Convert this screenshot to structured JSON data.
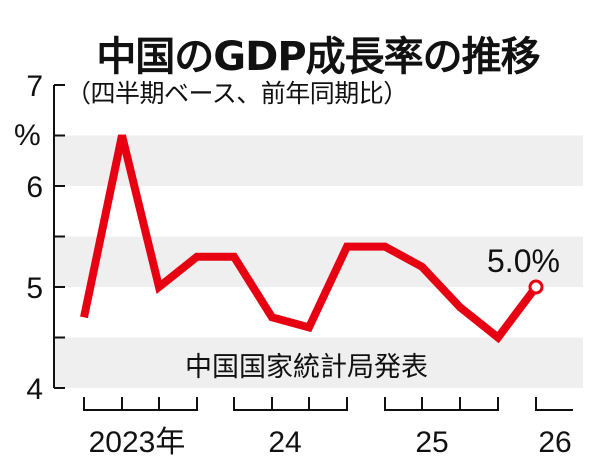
{
  "header": {
    "title": "中国のGDP成長率の推移",
    "subtitle": "（四半期ベース、前年同期比）"
  },
  "source_note": "中国国家統計局発表",
  "end_label": "5.0%",
  "y_unit": "%",
  "colors": {
    "line": "#e60012",
    "band": "#efefef",
    "axis": "#111111"
  },
  "chart_data": {
    "type": "line",
    "title": "中国のGDP成長率の推移",
    "subtitle": "（四半期ベース、前年同期比）",
    "xlabel": "",
    "ylabel": "%",
    "ylim": [
      4,
      7
    ],
    "yticks": [
      4,
      4.5,
      5,
      5.5,
      6,
      6.5,
      7
    ],
    "ytick_labels": [
      "4",
      "5",
      "6",
      "7"
    ],
    "x_group_labels": [
      "2023年",
      "24",
      "25",
      "26"
    ],
    "categories": [
      "2023Q1",
      "2023Q2",
      "2023Q3",
      "2023Q4",
      "2024Q1",
      "2024Q2",
      "2024Q3",
      "2024Q4",
      "2025Q1",
      "2025Q2",
      "2025Q3",
      "2025Q4",
      "2026Q1"
    ],
    "series": [
      {
        "name": "GDP成長率",
        "values": [
          4.7,
          6.5,
          5.0,
          5.3,
          5.3,
          4.7,
          4.6,
          5.4,
          5.4,
          5.2,
          4.8,
          4.5,
          5.0
        ]
      }
    ],
    "annotations": [
      {
        "text": "5.0%",
        "at": "2026Q1"
      },
      {
        "text": "中国国家統計局発表",
        "position": "bottom band"
      }
    ],
    "grid": "alternating horizontal bands",
    "legend": "none"
  }
}
